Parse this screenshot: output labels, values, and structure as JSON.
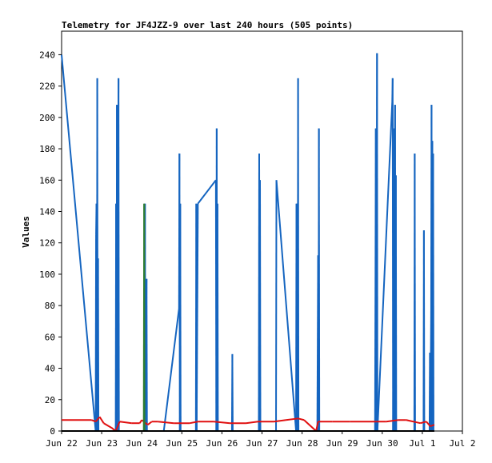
{
  "chart_data": {
    "type": "line",
    "title": "Telemetry for JF4JZZ-9 over last 240 hours (505 points)",
    "xlabel": "",
    "ylabel": "Values",
    "x_tick_labels": [
      "Jun 22",
      "Jun 23",
      "Jun 24",
      "Jun 25",
      "Jun 26",
      "Jun 27",
      "Jun 28",
      "Jun 29",
      "Jun 30",
      "Jul 1",
      "Jul 2"
    ],
    "y_ticks": [
      0,
      20,
      40,
      60,
      80,
      100,
      120,
      140,
      160,
      180,
      200,
      220,
      240
    ],
    "xlim_days": [
      0,
      10
    ],
    "ylim": [
      0,
      255
    ],
    "grid": false,
    "legend": "none",
    "colors": {
      "blue_series": "#1565c0",
      "red_series": "#e01010",
      "green_series": "#2e7d32",
      "black_series": "#000000"
    },
    "series": [
      {
        "color": "blue",
        "points": [
          [
            0.0,
            240
          ],
          [
            0.85,
            0
          ],
          [
            0.86,
            125
          ],
          [
            0.87,
            145
          ],
          [
            0.88,
            0
          ],
          [
            0.89,
            225
          ],
          [
            0.9,
            0
          ],
          [
            0.91,
            110
          ],
          [
            0.92,
            0
          ],
          [
            1.35,
            0
          ],
          [
            1.36,
            145
          ],
          [
            1.37,
            0
          ],
          [
            1.38,
            208
          ],
          [
            1.39,
            0
          ],
          [
            1.42,
            225
          ],
          [
            1.43,
            0
          ],
          [
            2.07,
            0
          ],
          [
            2.08,
            145
          ],
          [
            2.09,
            0
          ],
          [
            2.12,
            97
          ],
          [
            2.13,
            0
          ],
          [
            2.55,
            0
          ],
          [
            2.93,
            78
          ],
          [
            2.94,
            177
          ],
          [
            2.95,
            0
          ],
          [
            2.96,
            145
          ],
          [
            2.97,
            0
          ],
          [
            3.35,
            0
          ],
          [
            3.36,
            145
          ],
          [
            3.37,
            0
          ],
          [
            3.38,
            50
          ],
          [
            3.4,
            145
          ],
          [
            3.85,
            160
          ],
          [
            3.86,
            0
          ],
          [
            3.87,
            193
          ],
          [
            3.88,
            0
          ],
          [
            3.89,
            145
          ],
          [
            3.9,
            0
          ],
          [
            4.25,
            0
          ],
          [
            4.26,
            49
          ],
          [
            4.27,
            0
          ],
          [
            4.92,
            0
          ],
          [
            4.93,
            177
          ],
          [
            4.94,
            0
          ],
          [
            4.95,
            160
          ],
          [
            4.96,
            0
          ],
          [
            5.35,
            0
          ],
          [
            5.36,
            160
          ],
          [
            5.85,
            0
          ],
          [
            5.86,
            145
          ],
          [
            5.87,
            0
          ],
          [
            5.88,
            145
          ],
          [
            5.89,
            0
          ],
          [
            5.9,
            225
          ],
          [
            5.91,
            0
          ],
          [
            6.38,
            0
          ],
          [
            6.39,
            55
          ],
          [
            6.4,
            112
          ],
          [
            6.41,
            0
          ],
          [
            6.42,
            193
          ],
          [
            6.43,
            0
          ],
          [
            7.82,
            0
          ],
          [
            7.83,
            88
          ],
          [
            7.84,
            193
          ],
          [
            7.85,
            0
          ],
          [
            7.87,
            241
          ],
          [
            7.88,
            0
          ],
          [
            8.25,
            210
          ],
          [
            8.26,
            225
          ],
          [
            8.27,
            0
          ],
          [
            8.28,
            80
          ],
          [
            8.29,
            0
          ],
          [
            8.3,
            193
          ],
          [
            8.31,
            0
          ],
          [
            8.32,
            208
          ],
          [
            8.33,
            0
          ],
          [
            8.34,
            163
          ],
          [
            8.35,
            0
          ],
          [
            8.8,
            0
          ],
          [
            8.81,
            177
          ],
          [
            8.82,
            0
          ],
          [
            9.03,
            0
          ],
          [
            9.04,
            128
          ],
          [
            9.05,
            0
          ],
          [
            9.18,
            0
          ],
          [
            9.19,
            50
          ],
          [
            9.2,
            0
          ],
          [
            9.22,
            75
          ],
          [
            9.23,
            208
          ],
          [
            9.24,
            0
          ],
          [
            9.25,
            185
          ],
          [
            9.26,
            0
          ],
          [
            9.27,
            177
          ],
          [
            9.28,
            0
          ]
        ]
      },
      {
        "color": "red",
        "points": [
          [
            0.0,
            7
          ],
          [
            0.75,
            7
          ],
          [
            0.85,
            6
          ],
          [
            0.95,
            9
          ],
          [
            1.05,
            5
          ],
          [
            1.25,
            2
          ],
          [
            1.35,
            0
          ],
          [
            1.45,
            6
          ],
          [
            1.75,
            5
          ],
          [
            1.95,
            5
          ],
          [
            2.0,
            7
          ],
          [
            2.1,
            5
          ],
          [
            2.15,
            4
          ],
          [
            2.25,
            6
          ],
          [
            2.4,
            6
          ],
          [
            2.8,
            5
          ],
          [
            3.2,
            5
          ],
          [
            3.4,
            6
          ],
          [
            3.8,
            6
          ],
          [
            4.2,
            5
          ],
          [
            4.6,
            5
          ],
          [
            4.9,
            6
          ],
          [
            5.3,
            6
          ],
          [
            5.6,
            7
          ],
          [
            5.9,
            8
          ],
          [
            6.05,
            7
          ],
          [
            6.35,
            0
          ],
          [
            6.4,
            6
          ],
          [
            6.75,
            6
          ],
          [
            7.2,
            6
          ],
          [
            7.85,
            6
          ],
          [
            8.1,
            6
          ],
          [
            8.4,
            7
          ],
          [
            8.6,
            7
          ],
          [
            8.95,
            5
          ],
          [
            9.1,
            6
          ],
          [
            9.2,
            3
          ],
          [
            9.3,
            4
          ]
        ]
      },
      {
        "color": "green",
        "points": [
          [
            2.05,
            0
          ],
          [
            2.06,
            145
          ],
          [
            2.07,
            0
          ]
        ]
      },
      {
        "color": "black",
        "points": [
          [
            0.0,
            0
          ],
          [
            9.3,
            0
          ]
        ]
      }
    ]
  }
}
